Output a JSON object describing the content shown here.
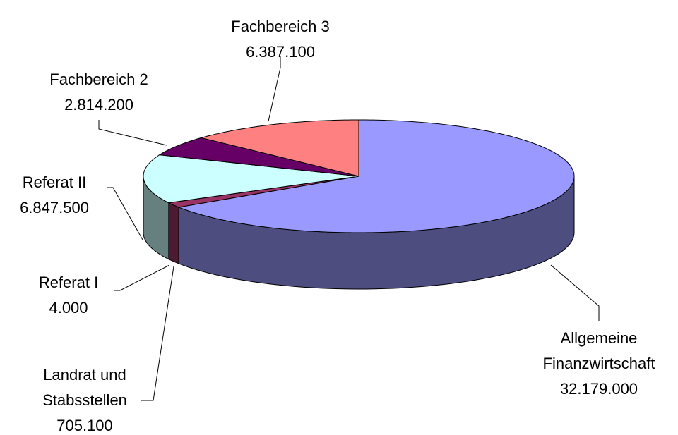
{
  "chart_data": {
    "type": "pie3d",
    "categories": [
      "Allgemeine Finanzwirtschaft",
      "Landrat und Stabsstellen",
      "Referat I",
      "Referat II",
      "Fachbereich 2",
      "Fachbereich 3"
    ],
    "values": [
      32179000,
      705100,
      4000,
      6847500,
      2814200,
      6387100
    ],
    "value_labels": [
      "32.179.000",
      "705.100",
      "4.000",
      "6.847.500",
      "2.814.200",
      "6.387.100"
    ],
    "colors": [
      "#9999ff",
      "#993366",
      "#ffffcc",
      "#ccffff",
      "#660066",
      "#ff8080"
    ]
  }
}
